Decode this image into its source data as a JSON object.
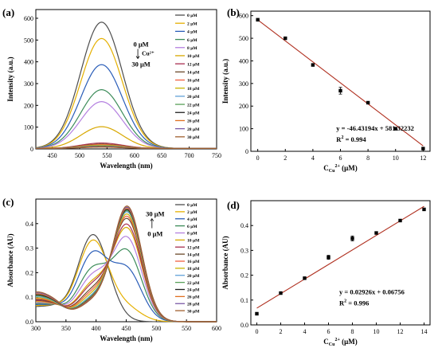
{
  "figure": {
    "panels": [
      "(a)",
      "(b)",
      "(c)",
      "(d)"
    ]
  },
  "chart_data": [
    {
      "panel": "(a)",
      "type": "line",
      "xlabel": "Wavelength (nm)",
      "ylabel": "Intensity (a.u.)",
      "xlim": [
        420,
        750
      ],
      "ylim": [
        0,
        640
      ],
      "xticks": [
        450,
        500,
        550,
        600,
        650,
        700,
        750
      ],
      "yticks": [
        0,
        100,
        200,
        300,
        400,
        500,
        600
      ],
      "grid": false,
      "legend_position": "top-right",
      "peak_x": 540,
      "sigma": 38,
      "annotation": {
        "top": "0 μM",
        "arrow_label": "Cu²⁺",
        "bottom": "30 μM"
      },
      "series": [
        {
          "name": "0 μM",
          "color": "#4d4d4d",
          "peak": 580
        },
        {
          "name": "2 μM",
          "color": "#e5b000",
          "peak": 505
        },
        {
          "name": "4 μM",
          "color": "#2a5db8",
          "peak": 385
        },
        {
          "name": "6 μM",
          "color": "#3d8c5a",
          "peak": 270
        },
        {
          "name": "8 μM",
          "color": "#b480e0",
          "peak": 215
        },
        {
          "name": "10 μM",
          "color": "#d8a800",
          "peak": 100
        },
        {
          "name": "12 μM",
          "color": "#a83050",
          "peak": 25
        },
        {
          "name": "14 μM",
          "color": "#6b4a2b",
          "peak": 20
        },
        {
          "name": "16 μM",
          "color": "#f06040",
          "peak": 18
        },
        {
          "name": "18 μM",
          "color": "#c8b400",
          "peak": 15
        },
        {
          "name": "20 μM",
          "color": "#60a0d8",
          "peak": 12
        },
        {
          "name": "22 μM",
          "color": "#5aa05a",
          "peak": 10
        },
        {
          "name": "24 μM",
          "color": "#202020",
          "peak": 9
        },
        {
          "name": "26 μM",
          "color": "#e07020",
          "peak": 8
        },
        {
          "name": "28 μM",
          "color": "#7a5aa8",
          "peak": 7
        },
        {
          "name": "30 μM",
          "color": "#a06030",
          "peak": 6
        }
      ]
    },
    {
      "panel": "(b)",
      "type": "scatter",
      "xlabel": "C",
      "xlabel_sub": "Cu",
      "xlabel_sup": "2+",
      "xlabel_unit": " (μM)",
      "ylabel": "Intensity (a.u.)",
      "xlim": [
        -0.5,
        12.5
      ],
      "ylim": [
        0,
        620
      ],
      "xticks": [
        0,
        2,
        4,
        6,
        8,
        10,
        12
      ],
      "yticks": [
        0,
        100,
        200,
        300,
        400,
        500,
        600
      ],
      "points": [
        {
          "x": 0,
          "y": 582,
          "err": 0
        },
        {
          "x": 2,
          "y": 500,
          "err": 0
        },
        {
          "x": 4,
          "y": 382,
          "err": 0
        },
        {
          "x": 6,
          "y": 268,
          "err": 15
        },
        {
          "x": 8,
          "y": 215,
          "err": 0
        },
        {
          "x": 10,
          "y": 100,
          "err": 0
        },
        {
          "x": 12,
          "y": 12,
          "err": 0
        }
      ],
      "fit": {
        "slope": -46.43194,
        "intercept": 581.32232,
        "x_range": [
          0,
          12
        ],
        "color": "#b03020"
      },
      "equation": "y = -46.43194x + 581.32232",
      "r2_prefix": "R",
      "r2_sup": "2",
      "r2_value": " = 0.994"
    },
    {
      "panel": "(c)",
      "type": "line",
      "xlabel": "Wavelength (nm)",
      "ylabel": "Absorbance (AU)",
      "xlim": [
        300,
        600
      ],
      "ylim": [
        0,
        0.5
      ],
      "xticks": [
        300,
        350,
        400,
        450,
        500,
        550,
        600
      ],
      "yticks": [
        0.0,
        0.1,
        0.2,
        0.3,
        0.4
      ],
      "grid": false,
      "legend_position": "top-right",
      "annotation": {
        "top": "30 μM",
        "bottom": "0 μM"
      },
      "series": [
        {
          "name": "0 μM",
          "color": "#4d4d4d",
          "a400": 0.355,
          "a455": 0.0
        },
        {
          "name": "2 μM",
          "color": "#e5b000",
          "a400": 0.33,
          "a455": 0.05
        },
        {
          "name": "4 μM",
          "color": "#2a5db8",
          "a400": 0.275,
          "a455": 0.2
        },
        {
          "name": "6 μM",
          "color": "#3d8c5a",
          "a400": 0.21,
          "a455": 0.275
        },
        {
          "name": "8 μM",
          "color": "#b480e0",
          "a400": 0.18,
          "a455": 0.33
        },
        {
          "name": "10 μM",
          "color": "#d8a800",
          "a400": 0.15,
          "a455": 0.37
        },
        {
          "name": "12 μM",
          "color": "#a83050",
          "a400": 0.14,
          "a455": 0.385
        },
        {
          "name": "14 μM",
          "color": "#6b4a2b",
          "a400": 0.12,
          "a455": 0.41
        },
        {
          "name": "16 μM",
          "color": "#f06040",
          "a400": 0.11,
          "a455": 0.42
        },
        {
          "name": "18 μM",
          "color": "#c8b400",
          "a400": 0.1,
          "a455": 0.43
        },
        {
          "name": "20 μM",
          "color": "#60a0d8",
          "a400": 0.09,
          "a455": 0.44
        },
        {
          "name": "22 μM",
          "color": "#5aa05a",
          "a400": 0.085,
          "a455": 0.445
        },
        {
          "name": "24 μM",
          "color": "#202020",
          "a400": 0.08,
          "a455": 0.45
        },
        {
          "name": "26 μM",
          "color": "#e07020",
          "a400": 0.078,
          "a455": 0.455
        },
        {
          "name": "28 μM",
          "color": "#7a5aa8",
          "a400": 0.075,
          "a455": 0.46
        },
        {
          "name": "30 μM",
          "color": "#a06030",
          "a400": 0.073,
          "a455": 0.465
        }
      ]
    },
    {
      "panel": "(d)",
      "type": "scatter",
      "xlabel": "C",
      "xlabel_sub": "Cu",
      "xlabel_sup": "2+",
      "xlabel_unit": " (μM)",
      "ylabel": "Absorbance (AU)",
      "xlim": [
        -0.5,
        14.5
      ],
      "ylim": [
        0,
        0.5
      ],
      "xticks": [
        0,
        2,
        4,
        6,
        8,
        10,
        12,
        14
      ],
      "yticks": [
        0.0,
        0.1,
        0.2,
        0.3,
        0.4
      ],
      "points": [
        {
          "x": 0,
          "y": 0.045,
          "err": 0
        },
        {
          "x": 2,
          "y": 0.128,
          "err": 0
        },
        {
          "x": 4,
          "y": 0.188,
          "err": 0
        },
        {
          "x": 6,
          "y": 0.272,
          "err": 0.008
        },
        {
          "x": 8,
          "y": 0.348,
          "err": 0.01
        },
        {
          "x": 10,
          "y": 0.37,
          "err": 0
        },
        {
          "x": 12,
          "y": 0.42,
          "err": 0
        },
        {
          "x": 14,
          "y": 0.465,
          "err": 0
        }
      ],
      "fit": {
        "slope": 0.02926,
        "intercept": 0.06756,
        "x_range": [
          0,
          14
        ],
        "color": "#b03020"
      },
      "equation": "y = 0.02926x + 0.06756",
      "r2_prefix": "R",
      "r2_sup": "2",
      "r2_value": " = 0.996"
    }
  ]
}
